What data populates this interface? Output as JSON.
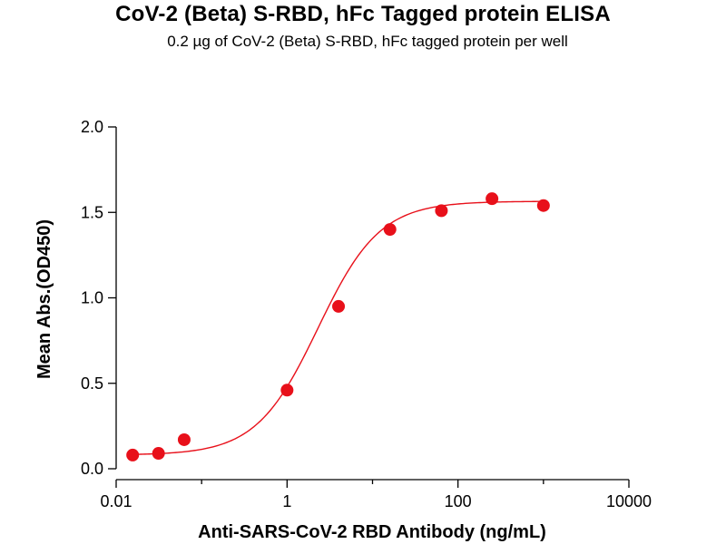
{
  "chart_data": {
    "type": "scatter",
    "title": "CoV-2 (Beta) S-RBD, hFc Tagged protein ELISA",
    "subtitle": "0.2 µg of CoV-2 (Beta) S-RBD, hFc tagged protein per well",
    "xlabel": "Anti-SARS-CoV-2 RBD Antibody (ng/mL)",
    "ylabel": "Mean Abs.(OD450)",
    "xscale": "log",
    "xlim": [
      0.01,
      10000
    ],
    "ylim": [
      0.0,
      2.0
    ],
    "xticks": [
      0.01,
      1,
      100,
      10000
    ],
    "xtick_labels": [
      "0.01",
      "1",
      "100",
      "10000"
    ],
    "yticks": [
      0.0,
      0.5,
      1.0,
      1.5,
      2.0
    ],
    "ytick_labels": [
      "0.0",
      "0.5",
      "1.0",
      "1.5",
      "2.0"
    ],
    "grid": false,
    "series": [
      {
        "color": "#e8101a",
        "x": [
          0.0156,
          0.0313,
          0.0625,
          1.0,
          4.0,
          16.0,
          64.0,
          250.0,
          1000.0
        ],
        "y": [
          0.08,
          0.09,
          0.17,
          0.46,
          0.95,
          1.4,
          1.51,
          1.58,
          1.54
        ],
        "fit": "sigmoidal curve"
      }
    ]
  }
}
